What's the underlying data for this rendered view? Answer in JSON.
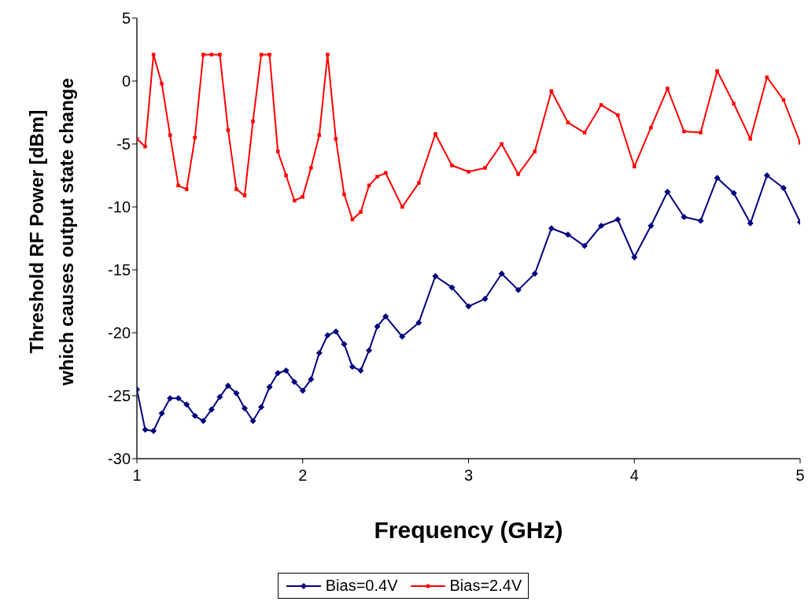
{
  "chart_data": {
    "type": "line",
    "xlabel": "Frequency (GHz)",
    "ylabel": "Threshold RF Power [dBm]\nwhich causes output state change",
    "x": [
      1.0,
      1.05,
      1.1,
      1.15,
      1.2,
      1.25,
      1.3,
      1.35,
      1.4,
      1.45,
      1.5,
      1.55,
      1.6,
      1.65,
      1.7,
      1.75,
      1.8,
      1.85,
      1.9,
      1.95,
      2.0,
      2.05,
      2.1,
      2.15,
      2.2,
      2.25,
      2.3,
      2.35,
      2.4,
      2.45,
      2.5,
      2.6,
      2.7,
      2.8,
      2.9,
      3.0,
      3.1,
      3.2,
      3.3,
      3.4,
      3.5,
      3.6,
      3.7,
      3.8,
      3.9,
      4.0,
      4.1,
      4.2,
      4.3,
      4.4,
      4.5,
      4.6,
      4.7,
      4.8,
      4.9,
      5.0
    ],
    "series": [
      {
        "name": "Bias=0.4V",
        "color": "#000080",
        "marker": "diamond",
        "values": [
          -24.5,
          -27.7,
          -27.8,
          -26.4,
          -25.2,
          -25.2,
          -25.7,
          -26.6,
          -27.0,
          -26.1,
          -25.1,
          -24.2,
          -24.8,
          -26.0,
          -27.0,
          -25.9,
          -24.3,
          -23.2,
          -23.0,
          -23.9,
          -24.6,
          -23.7,
          -21.6,
          -20.2,
          -19.9,
          -20.9,
          -22.7,
          -23.0,
          -21.4,
          -19.5,
          -18.7,
          -20.3,
          -19.2,
          -15.5,
          -16.4,
          -17.9,
          -17.3,
          -15.3,
          -16.6,
          -15.3,
          -11.7,
          -12.2,
          -13.1,
          -11.5,
          -11.0,
          -14.0,
          -11.5,
          -8.8,
          -10.8,
          -11.1,
          -7.7,
          -8.9,
          -11.3,
          -7.5,
          -8.5,
          -11.2
        ]
      },
      {
        "name": "Bias=2.4V",
        "color": "#ff0000",
        "marker": "square",
        "values": [
          -4.6,
          -5.2,
          2.1,
          -0.2,
          -4.3,
          -8.3,
          -8.6,
          -4.5,
          2.1,
          2.1,
          2.1,
          -3.9,
          -8.6,
          -9.1,
          -3.2,
          2.1,
          2.1,
          -5.6,
          -7.5,
          -9.5,
          -9.2,
          -6.9,
          -4.3,
          2.1,
          -4.6,
          -9.0,
          -11.0,
          -10.4,
          -8.3,
          -7.6,
          -7.3,
          -10.0,
          -8.1,
          -4.2,
          -6.7,
          -7.2,
          -6.9,
          -5.0,
          -7.4,
          -5.6,
          -0.8,
          -3.3,
          -4.1,
          -1.9,
          -2.7,
          -6.8,
          -3.7,
          -0.6,
          -4.0,
          -4.1,
          0.8,
          -1.8,
          -4.6,
          0.3,
          -1.5,
          -4.9
        ]
      }
    ],
    "xlim": [
      1,
      5
    ],
    "xticks": [
      1,
      2,
      3,
      4,
      5
    ],
    "ylim": [
      -30,
      5
    ],
    "yticks": [
      -30,
      -25,
      -20,
      -15,
      -10,
      -5,
      0,
      5
    ],
    "grid": false,
    "legend": "bottom",
    "line_style": "solid"
  }
}
